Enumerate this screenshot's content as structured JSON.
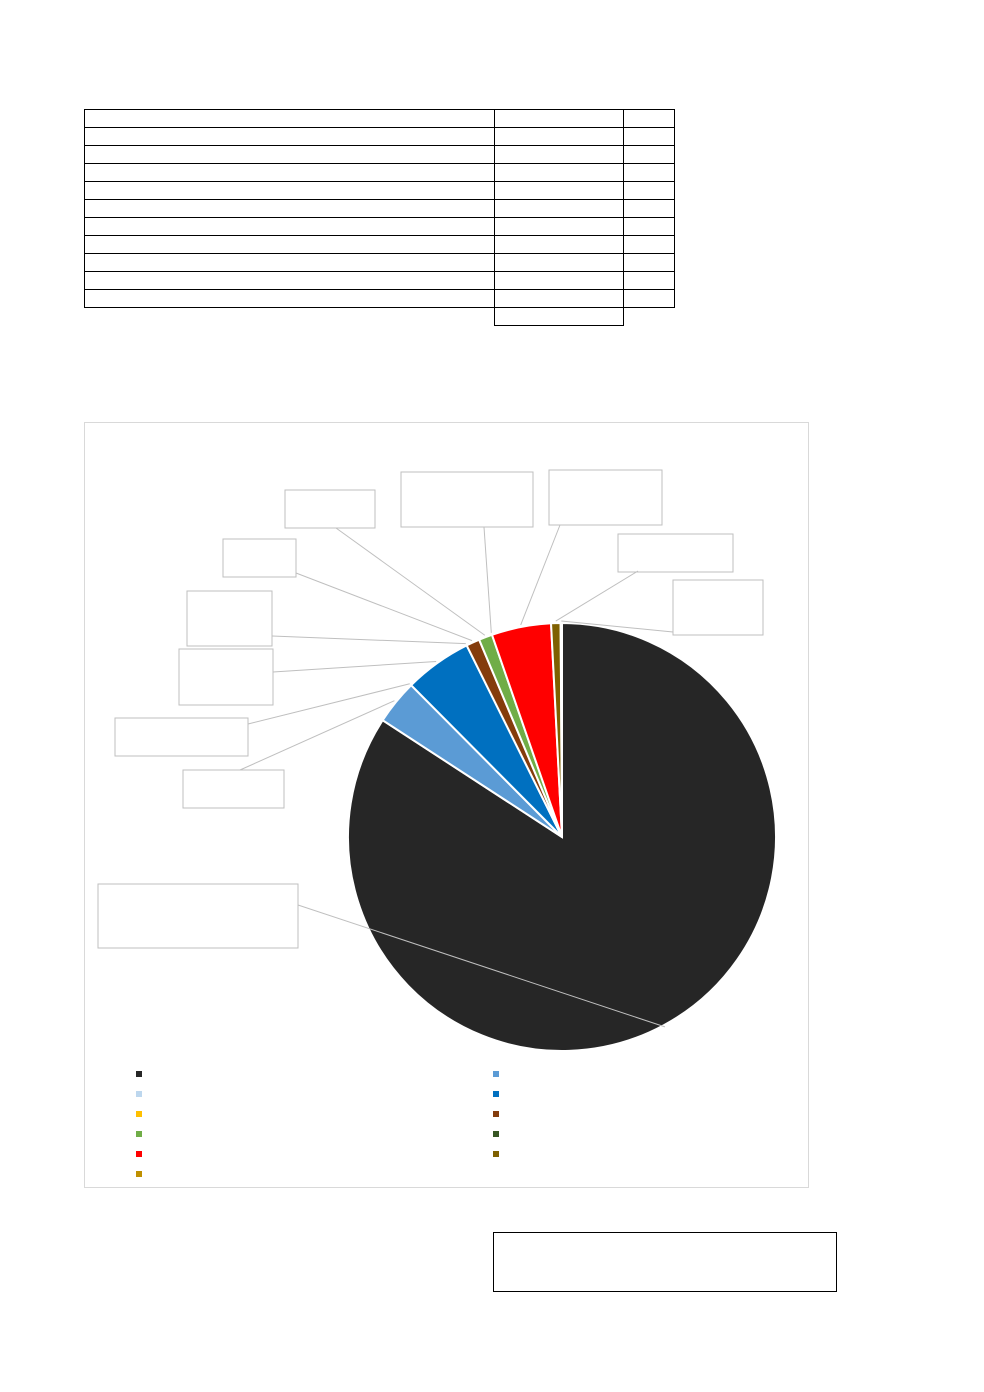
{
  "table": {
    "rows": [
      [
        "",
        "",
        ""
      ],
      [
        "",
        "",
        ""
      ],
      [
        "",
        "",
        ""
      ],
      [
        "",
        "",
        ""
      ],
      [
        "",
        "",
        ""
      ],
      [
        "",
        "",
        ""
      ],
      [
        "",
        "",
        ""
      ],
      [
        "",
        "",
        ""
      ],
      [
        "",
        "",
        ""
      ],
      [
        "",
        "",
        ""
      ],
      [
        "",
        "",
        ""
      ]
    ],
    "total": ""
  },
  "chart_data": {
    "type": "pie",
    "start_angle_deg": 0,
    "direction": "clockwise",
    "slices": [
      {
        "label": "",
        "value": 82.5,
        "color": "#262626"
      },
      {
        "label": "",
        "value": 3.3,
        "color": "#5b9bd5"
      },
      {
        "label": "",
        "value": 0.0,
        "color": "#bdd7ee"
      },
      {
        "label": "",
        "value": 5.0,
        "color": "#0070c0"
      },
      {
        "label": "",
        "value": 0.0,
        "color": "#ffc000"
      },
      {
        "label": "",
        "value": 1.0,
        "color": "#843c0c"
      },
      {
        "label": "",
        "value": 1.0,
        "color": "#70ad47"
      },
      {
        "label": "",
        "value": 0.0,
        "color": "#375623"
      },
      {
        "label": "",
        "value": 4.4,
        "color": "#ff0000"
      },
      {
        "label": "",
        "value": 0.7,
        "color": "#7f6000"
      },
      {
        "label": "",
        "value": 0.1,
        "color": "#bf9000"
      }
    ],
    "legend_position": "bottom",
    "data_labels": "callouts"
  },
  "summary_box": {
    "text": ""
  }
}
